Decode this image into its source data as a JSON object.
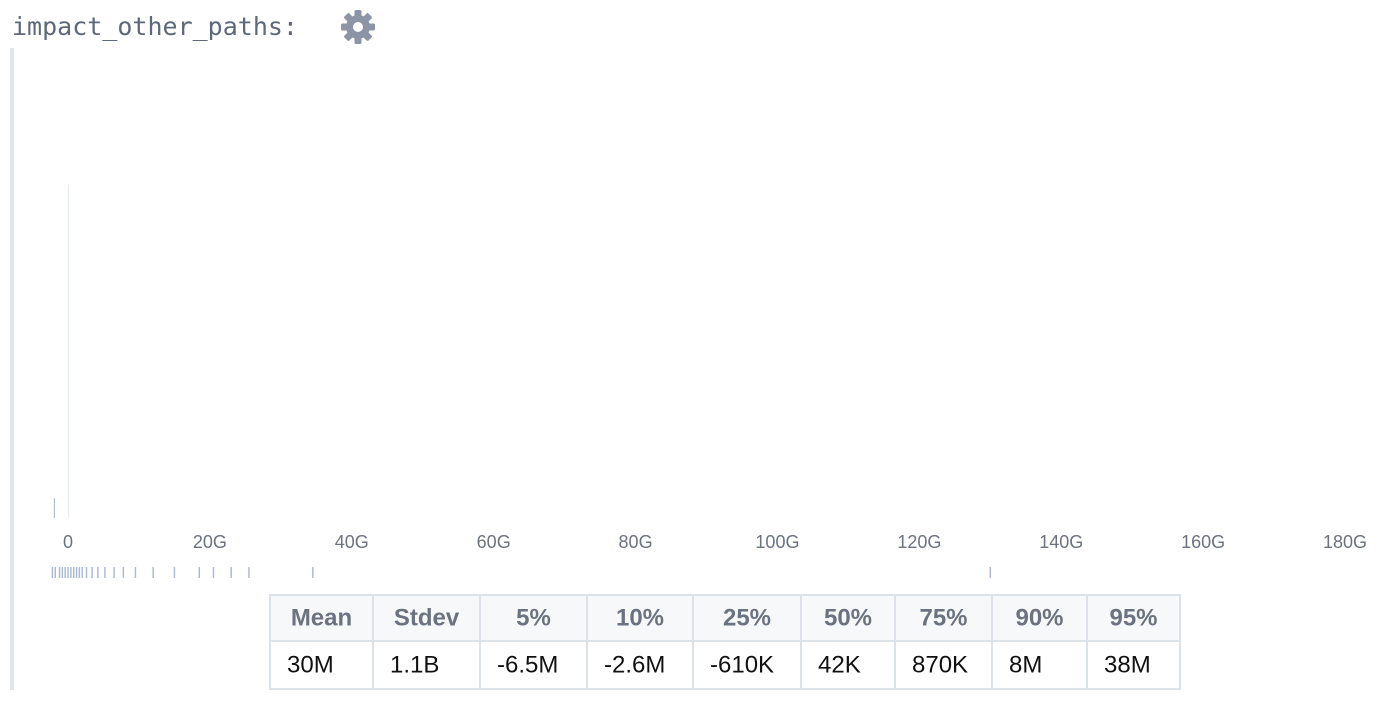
{
  "title": "impact_other_paths:",
  "chart_data": {
    "type": "histogram",
    "color": "#4a6a9e",
    "bins": [
      -2000000000,
      0,
      2000000000
    ],
    "counts": [
      60,
      1000
    ],
    "ylim": [
      0,
      1000
    ],
    "xlim": [
      -2500000000,
      180000000000
    ],
    "xticks": [
      0,
      {
        "value": 20000000000,
        "label": "20G"
      },
      {
        "value": 40000000000,
        "label": "40G"
      },
      {
        "value": 60000000000,
        "label": "60G"
      },
      {
        "value": 80000000000,
        "label": "80G"
      },
      {
        "value": 100000000000,
        "label": "100G"
      },
      {
        "value": 120000000000,
        "label": "120G"
      },
      {
        "value": 140000000000,
        "label": "140G"
      },
      {
        "value": 160000000000,
        "label": "160G"
      },
      {
        "value": 180000000000,
        "label": "180G"
      }
    ],
    "rug": [
      -2200000000,
      -1800000000,
      -1200000000,
      -800000000,
      -400000000,
      0,
      400000000,
      800000000,
      1200000000,
      1600000000,
      2000000000,
      2600000000,
      3400000000,
      4200000000,
      5200000000,
      6500000000,
      7800000000,
      9500000000,
      12000000000,
      15000000000,
      18500000000,
      20500000000,
      23000000000,
      25500000000,
      34500000000,
      130000000000
    ]
  },
  "table": {
    "header": [
      "Mean",
      "Stdev",
      "5%",
      "10%",
      "25%",
      "50%",
      "75%",
      "90%",
      "95%"
    ],
    "rows": [
      [
        "30M",
        "1.1B",
        "-6.5M",
        "-2.6M",
        "-610K",
        "42K",
        "870K",
        "8M",
        "38M"
      ]
    ]
  }
}
